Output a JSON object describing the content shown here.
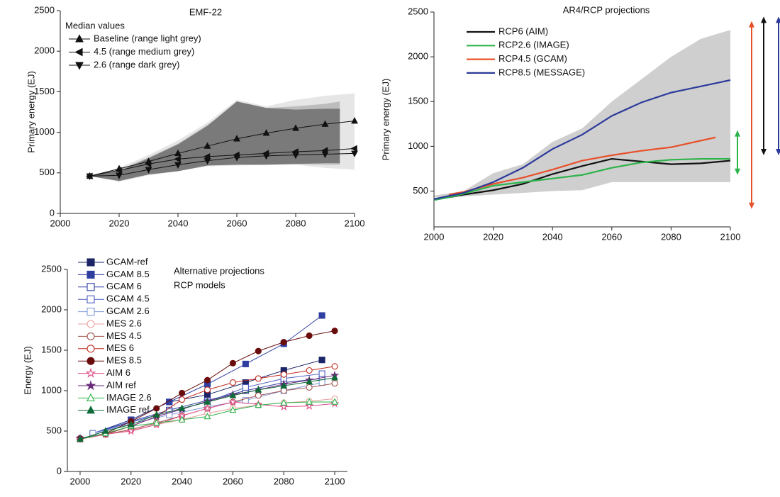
{
  "chart_data": [
    {
      "type": "line",
      "title": "EMF-22",
      "y_label": "Primary energy (EJ)",
      "legend_title": "Median values",
      "xlim": [
        2000,
        2100
      ],
      "xticks": [
        2000,
        2020,
        2040,
        2060,
        2080,
        2100
      ],
      "ylim": [
        0,
        2500
      ],
      "yticks": [
        0,
        500,
        1000,
        1500,
        2000,
        2500
      ],
      "bands": [
        {
          "color": "#e6e6e6",
          "x": [
            2010,
            2020,
            2030,
            2040,
            2050,
            2060,
            2070,
            2080,
            2090,
            2100
          ],
          "upper": [
            460,
            560,
            720,
            900,
            1120,
            1400,
            1320,
            1400,
            1450,
            1480
          ],
          "lower": [
            460,
            390,
            470,
            520,
            580,
            590,
            600,
            600,
            560,
            540
          ]
        },
        {
          "color": "#bdbdbd",
          "x": [
            2010,
            2020,
            2030,
            2040,
            2050,
            2060,
            2070,
            2080,
            2090,
            2095
          ],
          "upper": [
            460,
            540,
            690,
            860,
            1090,
            1350,
            1300,
            1320,
            1350,
            1380
          ],
          "lower": [
            460,
            420,
            490,
            540,
            600,
            610,
            610,
            610,
            600,
            600
          ]
        },
        {
          "color": "#7a7a7a",
          "x": [
            2010,
            2020,
            2030,
            2040,
            2050,
            2060,
            2070,
            2080,
            2090,
            2095
          ],
          "upper": [
            460,
            520,
            680,
            850,
            1080,
            1380,
            1300,
            1280,
            1290,
            1290
          ],
          "lower": [
            460,
            400,
            480,
            520,
            590,
            600,
            600,
            610,
            620,
            620
          ]
        }
      ],
      "series": [
        {
          "name": "Baseline (range light grey)",
          "color": "#111111",
          "marker": "triangle-up",
          "filled": true,
          "x": [
            2010,
            2020,
            2030,
            2040,
            2050,
            2060,
            2070,
            2080,
            2090,
            2100
          ],
          "values": [
            460,
            550,
            640,
            740,
            830,
            920,
            990,
            1050,
            1100,
            1140
          ]
        },
        {
          "name": "4.5 (range medium grey)",
          "color": "#111111",
          "marker": "triangle-left",
          "filled": true,
          "x": [
            2010,
            2020,
            2030,
            2040,
            2050,
            2060,
            2070,
            2080,
            2090,
            2100
          ],
          "values": [
            460,
            530,
            610,
            670,
            700,
            720,
            740,
            760,
            775,
            800
          ]
        },
        {
          "name": "2.6 (range dark grey)",
          "color": "#111111",
          "marker": "triangle-down",
          "filled": true,
          "x": [
            2010,
            2020,
            2030,
            2040,
            2050,
            2060,
            2070,
            2080,
            2090,
            2100
          ],
          "values": [
            460,
            470,
            540,
            600,
            650,
            690,
            710,
            720,
            730,
            740
          ]
        }
      ]
    },
    {
      "type": "line",
      "title": "AR4/RCP projections",
      "y_label": "Primary energy (EJ)",
      "xlim": [
        2000,
        2100
      ],
      "xticks": [
        2000,
        2020,
        2040,
        2060,
        2080,
        2100
      ],
      "ylim": [
        100,
        2500
      ],
      "yticks": [
        500,
        1000,
        1500,
        2000,
        2500
      ],
      "bands": [
        {
          "color": "#cfcfcf",
          "x": [
            2000,
            2010,
            2020,
            2030,
            2040,
            2050,
            2060,
            2070,
            2080,
            2090,
            2100
          ],
          "upper": [
            450,
            500,
            700,
            800,
            1050,
            1200,
            1500,
            1750,
            2000,
            2200,
            2300
          ],
          "lower": [
            430,
            440,
            460,
            480,
            500,
            510,
            600,
            600,
            600,
            600,
            600
          ]
        }
      ],
      "series": [
        {
          "name": "RCP6 (AIM)",
          "color": "#111111",
          "x": [
            2000,
            2005,
            2010,
            2020,
            2030,
            2040,
            2050,
            2060,
            2070,
            2080,
            2090,
            2100
          ],
          "values": [
            410,
            430,
            460,
            510,
            580,
            690,
            780,
            860,
            830,
            800,
            810,
            840
          ]
        },
        {
          "name": "RCP2.6 (IMAGE)",
          "color": "#2db34a",
          "x": [
            2000,
            2005,
            2010,
            2020,
            2030,
            2040,
            2050,
            2060,
            2070,
            2080,
            2090,
            2100
          ],
          "values": [
            400,
            430,
            470,
            560,
            600,
            640,
            680,
            760,
            820,
            850,
            860,
            860
          ]
        },
        {
          "name": "RCP4.5 (GCAM)",
          "color": "#e8502a",
          "x": [
            2005,
            2010,
            2020,
            2030,
            2040,
            2050,
            2060,
            2070,
            2080,
            2095
          ],
          "values": [
            460,
            490,
            580,
            650,
            740,
            840,
            900,
            950,
            990,
            1100
          ]
        },
        {
          "name": "RCP8.5 (MESSAGE)",
          "color": "#2b3a9a",
          "x": [
            2000,
            2010,
            2020,
            2030,
            2040,
            2050,
            2060,
            2070,
            2080,
            2090,
            2100
          ],
          "values": [
            410,
            480,
            600,
            760,
            970,
            1130,
            1340,
            1490,
            1600,
            1670,
            1740
          ]
        }
      ],
      "arrows": [
        {
          "color": "#2db34a",
          "values": [
            1180,
            680
          ]
        },
        {
          "color": "#e8502a",
          "values": [
            2400,
            300
          ]
        },
        {
          "color": "#111111",
          "values": [
            2450,
            900
          ]
        },
        {
          "color": "#2b3a9a",
          "values": [
            2450,
            900
          ]
        }
      ]
    },
    {
      "type": "line",
      "annotation": [
        "Alternative projections",
        "RCP models"
      ],
      "y_label": "Energy (EJ)",
      "xlim": [
        1995,
        2105
      ],
      "xticks": [
        2000,
        2020,
        2040,
        2060,
        2080,
        2100
      ],
      "ylim": [
        0,
        2500
      ],
      "yticks": [
        0,
        500,
        1000,
        1500,
        2000,
        2500
      ],
      "series": [
        {
          "name": "GCAM-ref",
          "color": "#1a2466",
          "marker": "square",
          "filled": true,
          "x": [
            2005,
            2020,
            2035,
            2050,
            2065,
            2080,
            2095
          ],
          "values": [
            470,
            640,
            860,
            950,
            1100,
            1250,
            1380
          ]
        },
        {
          "name": "GCAM 8.5",
          "color": "#2e3fa0",
          "marker": "square",
          "filled": true,
          "x": [
            2005,
            2020,
            2035,
            2050,
            2065,
            2080,
            2095
          ],
          "values": [
            470,
            640,
            860,
            1080,
            1330,
            1580,
            1930
          ]
        },
        {
          "name": "GCAM 6",
          "color": "#2e3fa0",
          "marker": "square",
          "filled": false,
          "x": [
            2005,
            2020,
            2035,
            2050,
            2065,
            2080,
            2095
          ],
          "values": [
            470,
            620,
            760,
            880,
            1000,
            1100,
            1150
          ]
        },
        {
          "name": "GCAM 4.5",
          "color": "#4a5cc0",
          "marker": "square",
          "filled": false,
          "x": [
            2005,
            2020,
            2035,
            2050,
            2065,
            2080,
            2095
          ],
          "values": [
            470,
            610,
            740,
            860,
            1040,
            1150,
            1210
          ]
        },
        {
          "name": "GCAM 2.6",
          "color": "#7f9ad8",
          "marker": "square",
          "filled": false,
          "x": [
            2005,
            2020,
            2035,
            2050,
            2065,
            2080,
            2095
          ],
          "values": [
            470,
            590,
            700,
            800,
            880,
            1000,
            1100
          ]
        },
        {
          "name": "MES 2.6",
          "color": "#e8a0a0",
          "marker": "circle",
          "filled": false,
          "x": [
            2000,
            2010,
            2020,
            2030,
            2040,
            2050,
            2060,
            2070,
            2080,
            2090,
            2100
          ],
          "values": [
            400,
            460,
            510,
            580,
            640,
            720,
            780,
            820,
            850,
            870,
            900
          ]
        },
        {
          "name": "MES 4.5",
          "color": "#a0524a",
          "marker": "circle",
          "filled": false,
          "x": [
            2000,
            2010,
            2020,
            2030,
            2040,
            2050,
            2060,
            2070,
            2080,
            2090,
            2100
          ],
          "values": [
            400,
            460,
            520,
            600,
            690,
            780,
            860,
            940,
            1000,
            1040,
            1090
          ]
        },
        {
          "name": "MES 6",
          "color": "#c0281e",
          "marker": "circle",
          "filled": false,
          "x": [
            2000,
            2010,
            2020,
            2030,
            2040,
            2050,
            2060,
            2070,
            2080,
            2090,
            2100
          ],
          "values": [
            400,
            460,
            560,
            680,
            890,
            1010,
            1100,
            1150,
            1200,
            1250,
            1300
          ]
        },
        {
          "name": "MES 8.5",
          "color": "#6a0c0c",
          "marker": "circle",
          "filled": true,
          "x": [
            2000,
            2010,
            2020,
            2030,
            2040,
            2050,
            2060,
            2070,
            2080,
            2090,
            2100
          ],
          "values": [
            410,
            470,
            620,
            780,
            970,
            1130,
            1340,
            1490,
            1600,
            1680,
            1740
          ]
        },
        {
          "name": "AIM 6",
          "color": "#e0508a",
          "marker": "star",
          "filled": false,
          "x": [
            2000,
            2010,
            2020,
            2030,
            2040,
            2050,
            2060,
            2070,
            2080,
            2090,
            2100
          ],
          "values": [
            400,
            460,
            500,
            580,
            690,
            780,
            860,
            830,
            800,
            810,
            840
          ]
        },
        {
          "name": "AIM ref",
          "color": "#6a2a7a",
          "marker": "star",
          "filled": true,
          "x": [
            2000,
            2010,
            2020,
            2030,
            2040,
            2050,
            2060,
            2070,
            2080,
            2090,
            2100
          ],
          "values": [
            410,
            470,
            560,
            680,
            770,
            870,
            950,
            1010,
            1080,
            1130,
            1190
          ]
        },
        {
          "name": "IMAGE 2.6",
          "color": "#2db34a",
          "marker": "triangle-up",
          "filled": false,
          "x": [
            2000,
            2010,
            2020,
            2030,
            2040,
            2050,
            2060,
            2070,
            2080,
            2090,
            2100
          ],
          "values": [
            400,
            470,
            560,
            600,
            640,
            680,
            760,
            820,
            850,
            860,
            860
          ]
        },
        {
          "name": "IMAGE ref",
          "color": "#0e6a38",
          "marker": "triangle-up",
          "filled": true,
          "x": [
            2000,
            2010,
            2020,
            2030,
            2040,
            2050,
            2060,
            2070,
            2080,
            2090,
            2100
          ],
          "values": [
            400,
            500,
            580,
            700,
            780,
            860,
            940,
            1010,
            1060,
            1110,
            1160
          ]
        }
      ]
    }
  ]
}
